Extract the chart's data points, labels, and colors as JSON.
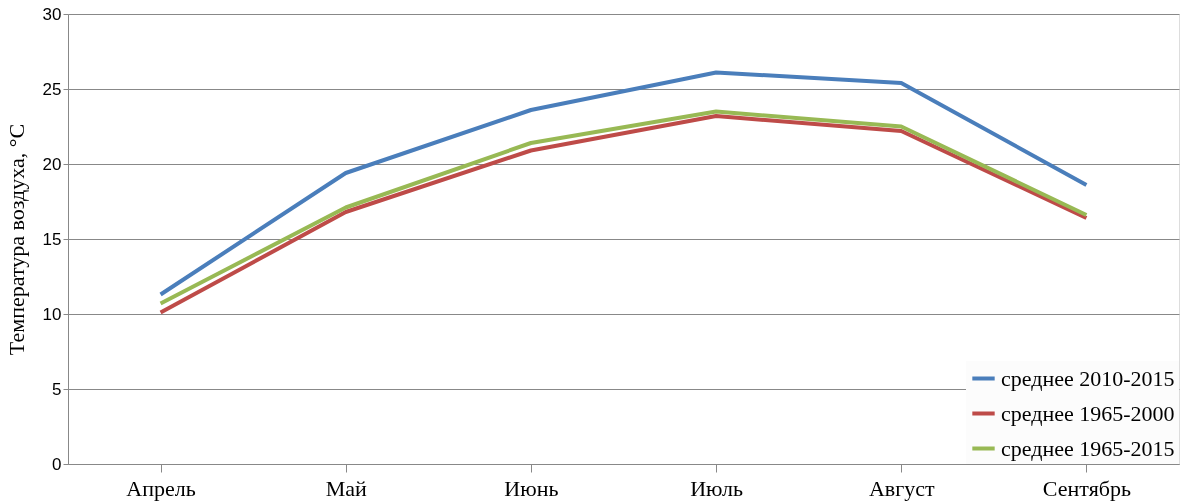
{
  "chart_data": {
    "type": "line",
    "ylabel": "Температура воздуха, °С",
    "categories": [
      "Апрель",
      "Май",
      "Июнь",
      "Июль",
      "Август",
      "Сентябрь"
    ],
    "series": [
      {
        "name": "среднее 2010-2015",
        "color": "#4a7ebb",
        "values": [
          11.3,
          19.4,
          23.6,
          26.1,
          25.4,
          18.6
        ]
      },
      {
        "name": "среднее 1965-2000",
        "color": "#be4b48",
        "values": [
          10.1,
          16.8,
          20.9,
          23.2,
          22.2,
          16.4
        ]
      },
      {
        "name": "среднее 1965-2015",
        "color": "#98b954",
        "values": [
          10.7,
          17.1,
          21.4,
          23.5,
          22.5,
          16.6
        ]
      }
    ],
    "ylim": [
      0,
      30
    ],
    "yticks": [
      0,
      5,
      10,
      15,
      20,
      25,
      30
    ],
    "grid": "y",
    "legend": "bottom right",
    "marker": "none",
    "line_style": "solid"
  }
}
